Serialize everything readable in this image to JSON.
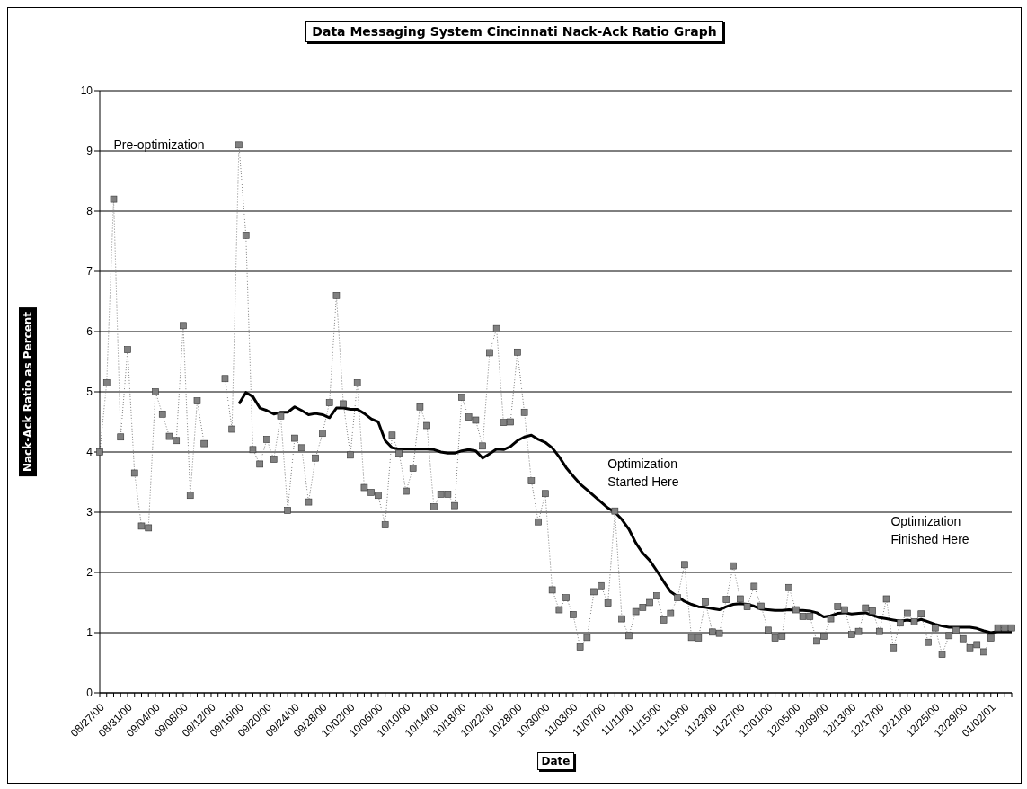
{
  "chart_data": {
    "type": "line",
    "title": "Data Messaging System Cincinnati Nack-Ack Ratio Graph",
    "xlabel": "Date",
    "ylabel": "Nack-Ack Ratio as Percent",
    "categories": [
      "08/27/00",
      null,
      null,
      null,
      "08/31/00",
      null,
      null,
      null,
      "09/04/00",
      null,
      null,
      null,
      "09/08/00",
      null,
      null,
      null,
      "09/12/00",
      null,
      null,
      null,
      "09/16/00",
      null,
      null,
      null,
      "09/20/00",
      null,
      null,
      null,
      "09/24/00",
      null,
      null,
      null,
      "09/28/00",
      null,
      null,
      null,
      "10/02/00",
      null,
      null,
      null,
      "10/06/00",
      null,
      null,
      null,
      "10/10/00",
      null,
      null,
      null,
      "10/14/00",
      null,
      null,
      null,
      "10/18/00",
      null,
      null,
      null,
      "10/22/00",
      null,
      null,
      null,
      "10/28/00",
      null,
      null,
      null,
      "10/30/00",
      null,
      null,
      null,
      "11/03/00",
      null,
      null,
      null,
      "11/07/00",
      null,
      null,
      null,
      "11/11/00",
      null,
      null,
      null,
      "11/15/00",
      null,
      null,
      null,
      "11/19/00",
      null,
      null,
      null,
      "11/23/00",
      null,
      null,
      null,
      "11/27/00",
      null,
      null,
      null,
      "12/01/00",
      null,
      null,
      null,
      "12/05/00",
      null,
      null,
      null,
      "12/09/00",
      null,
      null,
      null,
      "12/13/00",
      null,
      null,
      null,
      "12/17/00",
      null,
      null,
      null,
      "12/21/00",
      null,
      null,
      null,
      "12/25/00",
      null,
      null,
      null,
      "12/29/00",
      null,
      null,
      null,
      "01/02/01",
      null,
      null,
      null
    ],
    "series": [
      {
        "color": "#808080",
        "marker": "square",
        "line_style": "dotted",
        "values": [
          4.0,
          5.15,
          8.2,
          4.25,
          5.7,
          3.65,
          2.77,
          2.74,
          5.0,
          4.63,
          4.26,
          4.19,
          6.1,
          3.28,
          4.85,
          4.14,
          null,
          null,
          5.22,
          4.38,
          9.1,
          7.6,
          4.04,
          3.8,
          4.21,
          3.88,
          4.6,
          3.03,
          4.23,
          4.07,
          3.17,
          3.9,
          4.31,
          4.82,
          6.6,
          4.8,
          3.95,
          5.15,
          3.41,
          3.33,
          3.28,
          2.79,
          4.28,
          3.98,
          3.35,
          3.73,
          4.75,
          4.44,
          3.09,
          3.3,
          3.3,
          3.11,
          4.91,
          4.58,
          4.53,
          4.1,
          5.65,
          6.05,
          4.49,
          4.5,
          5.66,
          4.66,
          3.52,
          2.84,
          3.31,
          1.71,
          1.38,
          1.58,
          1.3,
          0.76,
          0.92,
          1.68,
          1.78,
          1.49,
          3.02,
          1.23,
          0.95,
          1.35,
          1.42,
          1.5,
          1.61,
          1.21,
          1.32,
          1.58,
          2.13,
          0.92,
          0.91,
          1.51,
          1.01,
          0.99,
          1.55,
          2.11,
          1.56,
          1.43,
          1.77,
          1.44,
          1.04,
          0.91,
          0.94,
          1.75,
          1.38,
          1.27,
          1.27,
          0.86,
          0.94,
          1.23,
          1.43,
          1.38,
          0.97,
          1.02,
          1.41,
          1.36,
          1.02,
          1.56,
          0.75,
          1.16,
          1.32,
          1.18,
          1.31,
          0.84,
          1.08,
          0.64,
          0.95,
          1.04,
          0.9,
          0.75,
          0.8,
          0.68,
          0.91,
          1.08,
          1.08,
          1.08
        ]
      },
      {
        "color": "#000000",
        "marker": "none",
        "line_style": "solid",
        "values": [
          null,
          null,
          null,
          null,
          null,
          null,
          null,
          null,
          null,
          null,
          null,
          null,
          null,
          null,
          null,
          null,
          null,
          null,
          null,
          null,
          4.8,
          4.99,
          4.92,
          4.73,
          4.69,
          4.63,
          4.66,
          4.66,
          4.75,
          4.69,
          4.62,
          4.64,
          4.62,
          4.57,
          4.73,
          4.73,
          4.71,
          4.71,
          4.64,
          4.55,
          4.5,
          4.19,
          4.07,
          4.05,
          4.05,
          4.05,
          4.05,
          4.05,
          4.04,
          4.0,
          3.98,
          3.98,
          4.02,
          4.04,
          4.02,
          3.9,
          3.97,
          4.05,
          4.04,
          4.09,
          4.19,
          4.25,
          4.28,
          4.21,
          4.16,
          4.07,
          3.92,
          3.74,
          3.6,
          3.47,
          3.37,
          3.27,
          3.17,
          3.07,
          3.0,
          2.88,
          2.72,
          2.49,
          2.32,
          2.2,
          2.03,
          1.85,
          1.68,
          1.6,
          1.52,
          1.47,
          1.43,
          1.42,
          1.4,
          1.38,
          1.43,
          1.47,
          1.48,
          1.47,
          1.44,
          1.39,
          1.38,
          1.37,
          1.37,
          1.38,
          1.37,
          1.37,
          1.36,
          1.33,
          1.26,
          1.28,
          1.32,
          1.33,
          1.31,
          1.32,
          1.33,
          1.29,
          1.25,
          1.23,
          1.21,
          1.19,
          1.21,
          1.19,
          1.22,
          1.18,
          1.14,
          1.11,
          1.09,
          1.09,
          1.09,
          1.09,
          1.07,
          1.03,
          1.0,
          1.02,
          1.02,
          1.02
        ]
      }
    ],
    "ylim": [
      0,
      10
    ],
    "yticks": [
      0,
      1,
      2,
      3,
      4,
      5,
      6,
      7,
      8,
      9,
      10
    ],
    "grid": "y",
    "annotations": [
      "Pre-optimization",
      "Optimization\nStarted Here",
      "Optimization\nFinished Here"
    ]
  }
}
